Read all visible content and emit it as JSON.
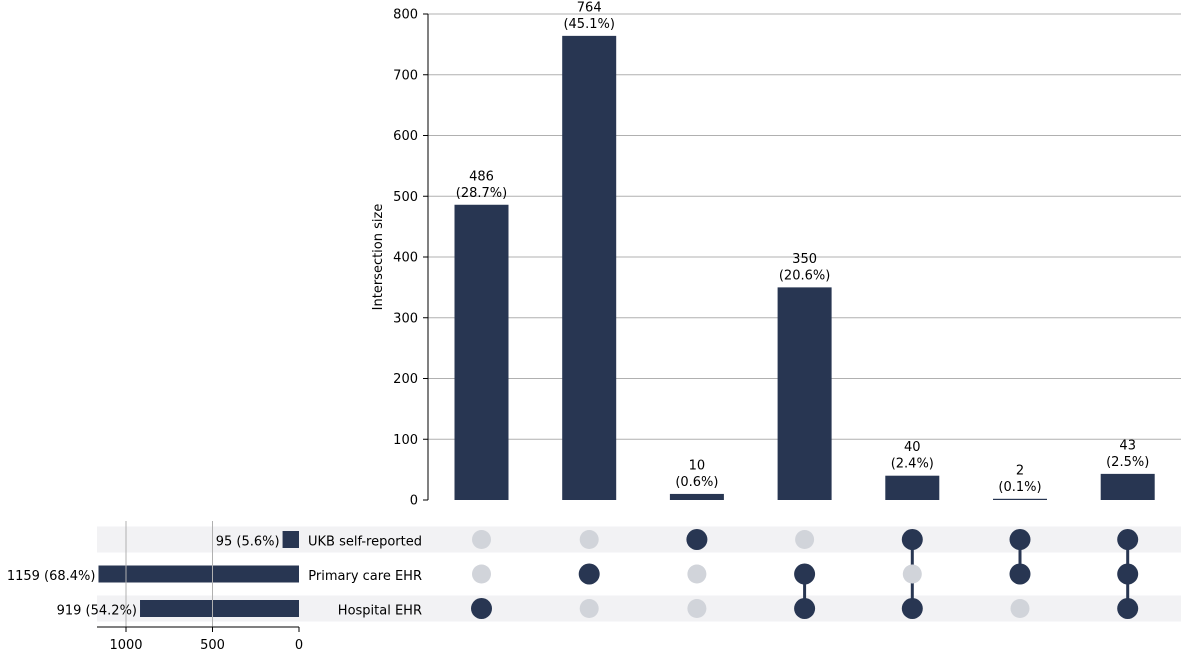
{
  "chart_data": {
    "type": "upset",
    "intersection_axis_label": "Intersection size",
    "intersection_ylim": [
      0,
      800
    ],
    "intersection_yticks": [
      0,
      100,
      200,
      300,
      400,
      500,
      600,
      700,
      800
    ],
    "grid": true,
    "sets": [
      {
        "name": "UKB self-reported",
        "size": 95,
        "label": "95 (5.6%)"
      },
      {
        "name": "Primary care EHR",
        "size": 1159,
        "label": "1159 (68.4%)"
      },
      {
        "name": "Hospital EHR",
        "size": 919,
        "label": "919 (54.2%)"
      }
    ],
    "set_size_ticks": [
      1000,
      500,
      0
    ],
    "intersections": [
      {
        "value": 486,
        "count_label": "486",
        "pct_label": "(28.7%)",
        "members": [
          false,
          false,
          true
        ]
      },
      {
        "value": 764,
        "count_label": "764",
        "pct_label": "(45.1%)",
        "members": [
          false,
          true,
          false
        ]
      },
      {
        "value": 10,
        "count_label": "10",
        "pct_label": "(0.6%)",
        "members": [
          true,
          false,
          false
        ]
      },
      {
        "value": 350,
        "count_label": "350",
        "pct_label": "(20.6%)",
        "members": [
          false,
          true,
          true
        ]
      },
      {
        "value": 40,
        "count_label": "40",
        "pct_label": "(2.4%)",
        "members": [
          true,
          false,
          true
        ]
      },
      {
        "value": 2,
        "count_label": "2",
        "pct_label": "(0.1%)",
        "members": [
          true,
          true,
          false
        ]
      },
      {
        "value": 43,
        "count_label": "43",
        "pct_label": "(2.5%)",
        "members": [
          true,
          true,
          true
        ]
      }
    ],
    "colors": {
      "bar": "#283652",
      "dot_active": "#283652",
      "dot_inactive": "#d1d4da",
      "stripe": "#f2f2f4",
      "grid": "#b0b0b0"
    }
  }
}
